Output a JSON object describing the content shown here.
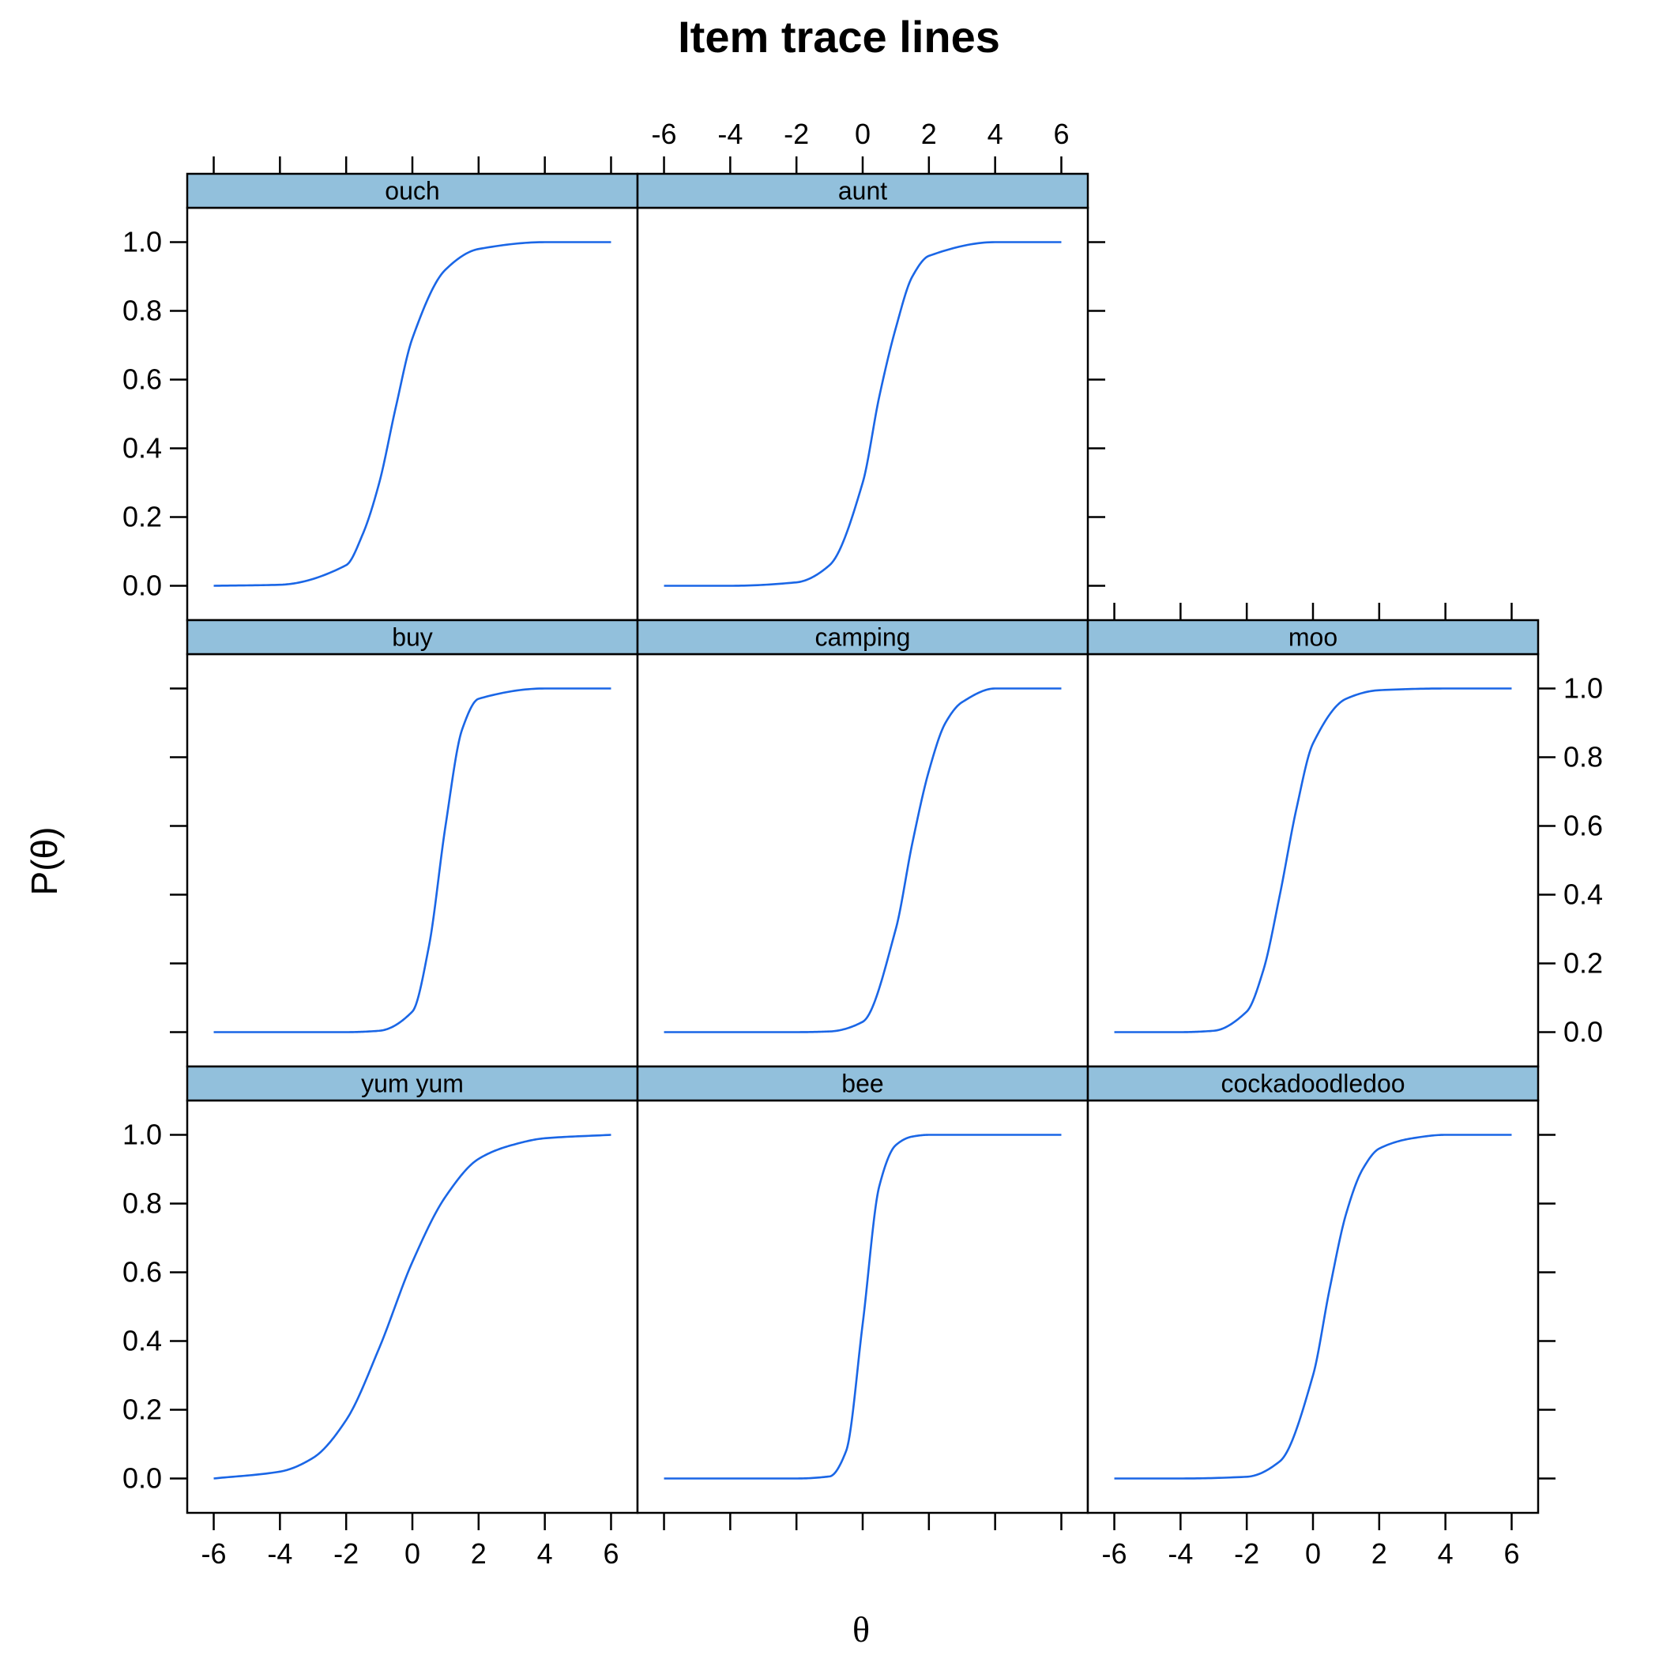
{
  "chart_data": {
    "type": "line",
    "title": "Item trace lines",
    "xlabel": "θ",
    "ylabel": "P(θ)",
    "xlim": [
      -6.8,
      6.8
    ],
    "ylim": [
      -0.1,
      1.1
    ],
    "x_ticks": [
      "-6",
      "-4",
      "-2",
      "0",
      "2",
      "4",
      "6"
    ],
    "y_ticks": [
      "0.0",
      "0.2",
      "0.4",
      "0.6",
      "0.8",
      "1.0"
    ],
    "strip_color": "#92c0dc",
    "line_color": "#1a66e6",
    "panels": [
      {
        "name": "ouch",
        "row": 0,
        "col": 0,
        "x": [
          -6,
          -4,
          -2,
          -1.5,
          -1,
          -0.5,
          0,
          1,
          2,
          4,
          6
        ],
        "y": [
          0.0,
          0.003,
          0.06,
          0.15,
          0.3,
          0.52,
          0.72,
          0.92,
          0.98,
          1.0,
          1.0
        ]
      },
      {
        "name": "aunt",
        "row": 0,
        "col": 1,
        "x": [
          -6,
          -4,
          -2,
          -1,
          0,
          0.5,
          1,
          1.5,
          2,
          4,
          6
        ],
        "y": [
          0.0,
          0.0,
          0.01,
          0.06,
          0.3,
          0.55,
          0.75,
          0.9,
          0.96,
          1.0,
          1.0
        ]
      },
      {
        "name": "buy",
        "row": 1,
        "col": 0,
        "x": [
          -6,
          -4,
          -2,
          -1,
          0,
          0.5,
          1,
          1.5,
          2,
          4,
          6
        ],
        "y": [
          0.0,
          0.0,
          0.0,
          0.004,
          0.06,
          0.25,
          0.6,
          0.88,
          0.97,
          1.0,
          1.0
        ]
      },
      {
        "name": "camping",
        "row": 1,
        "col": 1,
        "x": [
          -6,
          -4,
          -2,
          -1,
          0,
          1,
          1.5,
          2,
          2.5,
          3,
          4,
          6
        ],
        "y": [
          0.0,
          0.0,
          0.0,
          0.002,
          0.03,
          0.3,
          0.55,
          0.76,
          0.9,
          0.96,
          1.0,
          1.0
        ]
      },
      {
        "name": "moo",
        "row": 1,
        "col": 2,
        "x": [
          -6,
          -4,
          -3,
          -2,
          -1.5,
          -1,
          -0.5,
          0,
          1,
          2,
          4,
          6
        ],
        "y": [
          0.0,
          0.0,
          0.004,
          0.06,
          0.18,
          0.4,
          0.65,
          0.84,
          0.97,
          0.995,
          1.0,
          1.0
        ]
      },
      {
        "name": "yum yum",
        "row": 2,
        "col": 0,
        "x": [
          -6,
          -4,
          -3,
          -2,
          -1,
          0,
          1,
          2,
          3,
          4,
          6
        ],
        "y": [
          0.0,
          0.02,
          0.06,
          0.17,
          0.38,
          0.63,
          0.82,
          0.93,
          0.97,
          0.99,
          1.0
        ]
      },
      {
        "name": "bee",
        "row": 2,
        "col": 1,
        "x": [
          -6,
          -4,
          -2,
          -1,
          -0.5,
          0,
          0.5,
          1,
          1.5,
          2,
          4,
          6
        ],
        "y": [
          0.0,
          0.0,
          0.0,
          0.006,
          0.08,
          0.45,
          0.85,
          0.97,
          0.995,
          1.0,
          1.0,
          1.0
        ]
      },
      {
        "name": "cockadoodledoo",
        "row": 2,
        "col": 2,
        "x": [
          -6,
          -4,
          -2,
          -1,
          0,
          0.5,
          1,
          1.5,
          2,
          3,
          4,
          6
        ],
        "y": [
          0.0,
          0.0,
          0.005,
          0.05,
          0.3,
          0.55,
          0.77,
          0.9,
          0.96,
          0.99,
          1.0,
          1.0
        ]
      }
    ]
  }
}
